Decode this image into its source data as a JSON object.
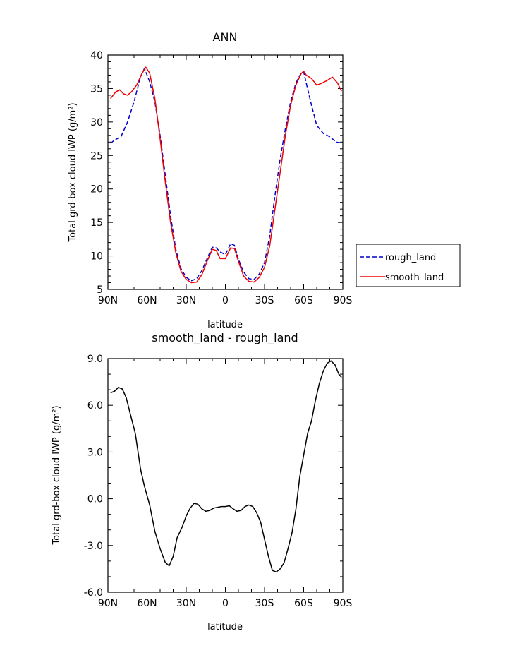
{
  "chart_data": [
    {
      "type": "line",
      "title": "ANN",
      "xlabel": "latitude",
      "ylabel": "Total grd-box cloud IWP (g/m²)",
      "x_tick_labels": [
        "90N",
        "60N",
        "30N",
        "0",
        "30S",
        "60S",
        "90S"
      ],
      "x_ticks": [
        90,
        60,
        30,
        0,
        -30,
        -60,
        -90
      ],
      "xlim": [
        90,
        -90
      ],
      "ylim": [
        5,
        40
      ],
      "y_ticks": [
        5,
        10,
        15,
        20,
        25,
        30,
        35,
        40
      ],
      "legend_placement": "right",
      "series": [
        {
          "name": "rough_land",
          "color": "#0000cc",
          "dash": true,
          "x": [
            88,
            85,
            80,
            75,
            70,
            65,
            62,
            58,
            54,
            50,
            46,
            42,
            38,
            34,
            30,
            26,
            22,
            18,
            14,
            10,
            7,
            4,
            0,
            -4,
            -7,
            -10,
            -14,
            -18,
            -22,
            -26,
            -30,
            -34,
            -38,
            -42,
            -46,
            -50,
            -54,
            -58,
            -60,
            -62,
            -66,
            -70,
            -75,
            -80,
            -85,
            -88
          ],
          "y": [
            26.8,
            27.3,
            27.8,
            30,
            33,
            36.8,
            38,
            36,
            33,
            28,
            22,
            16,
            11,
            8.1,
            6.8,
            6.3,
            6.6,
            7.8,
            9.6,
            11.3,
            11.2,
            10.6,
            10.2,
            11.8,
            11.6,
            9.5,
            7.6,
            6.6,
            6.5,
            7.3,
            9,
            13,
            19,
            24.5,
            29,
            33,
            35.8,
            37.3,
            37.5,
            35.8,
            32.5,
            29.5,
            28.3,
            27.8,
            27,
            26.9
          ]
        },
        {
          "name": "smooth_land",
          "color": "#ee0000",
          "dash": false,
          "x": [
            88,
            84,
            81,
            78,
            75,
            72,
            68,
            64,
            61,
            58,
            54,
            50,
            46,
            42,
            38,
            34,
            30,
            26,
            22,
            18,
            14,
            10,
            7,
            4,
            0,
            -4,
            -7,
            -10,
            -14,
            -18,
            -22,
            -26,
            -30,
            -34,
            -38,
            -42,
            -46,
            -50,
            -54,
            -58,
            -60,
            -62,
            -66,
            -70,
            -74,
            -78,
            -82,
            -86,
            -89
          ],
          "y": [
            33.5,
            34.5,
            34.8,
            34.2,
            34,
            34.5,
            35.5,
            37.2,
            38.2,
            37.3,
            33.5,
            27.5,
            21,
            15,
            10.5,
            7.7,
            6.5,
            6,
            6.1,
            7.2,
            9.2,
            11,
            10.8,
            9.6,
            9.6,
            11.2,
            11.1,
            9.2,
            7,
            6.2,
            6.1,
            6.8,
            8.3,
            11.5,
            17,
            22.5,
            28,
            32.5,
            35.5,
            37.2,
            37.6,
            37,
            36.5,
            35.5,
            35.8,
            36.2,
            36.7,
            35.8,
            34.6
          ]
        }
      ]
    },
    {
      "type": "line",
      "title": "smooth_land - rough_land",
      "xlabel": "latitude",
      "ylabel": "Total grd-box cloud IWP (g/m²)",
      "x_tick_labels": [
        "90N",
        "60N",
        "30N",
        "0",
        "30S",
        "60S",
        "90S"
      ],
      "x_ticks": [
        90,
        60,
        30,
        0,
        -30,
        -60,
        -90
      ],
      "xlim": [
        90,
        -90
      ],
      "ylim": [
        -6,
        9
      ],
      "y_ticks": [
        -6,
        -3,
        0,
        3,
        6,
        9
      ],
      "y_tick_labels": [
        "-6.0",
        "-3.0",
        "0.0",
        "3.0",
        "6.0",
        "9.0"
      ],
      "series": [
        {
          "name": "",
          "color": "#000000",
          "dash": false,
          "x": [
            88,
            85,
            82,
            79,
            76,
            73,
            69,
            65,
            62,
            58,
            54,
            50,
            46,
            43,
            40,
            37,
            33,
            30,
            27,
            24,
            21,
            18,
            15,
            12,
            9,
            6,
            3,
            0,
            -3,
            -6,
            -9,
            -12,
            -15,
            -18,
            -21,
            -24,
            -27,
            -30,
            -33,
            -36,
            -39,
            -42,
            -45,
            -48,
            -51,
            -54,
            -57,
            -60,
            -63,
            -66,
            -69,
            -72,
            -75,
            -78,
            -81,
            -84,
            -87,
            -89
          ],
          "y": [
            6.8,
            6.9,
            7.15,
            7.05,
            6.5,
            5.5,
            4.2,
            1.9,
            0.8,
            -0.4,
            -2.1,
            -3.2,
            -4.1,
            -4.3,
            -3.7,
            -2.5,
            -1.8,
            -1.1,
            -0.6,
            -0.3,
            -0.35,
            -0.65,
            -0.8,
            -0.75,
            -0.6,
            -0.55,
            -0.5,
            -0.5,
            -0.45,
            -0.65,
            -0.8,
            -0.75,
            -0.5,
            -0.4,
            -0.5,
            -0.9,
            -1.5,
            -2.6,
            -3.7,
            -4.6,
            -4.7,
            -4.5,
            -4.1,
            -3.2,
            -2.2,
            -0.7,
            1.4,
            2.8,
            4.2,
            5.0,
            6.3,
            7.4,
            8.2,
            8.7,
            8.85,
            8.6,
            8.0,
            7.8
          ]
        }
      ]
    }
  ]
}
